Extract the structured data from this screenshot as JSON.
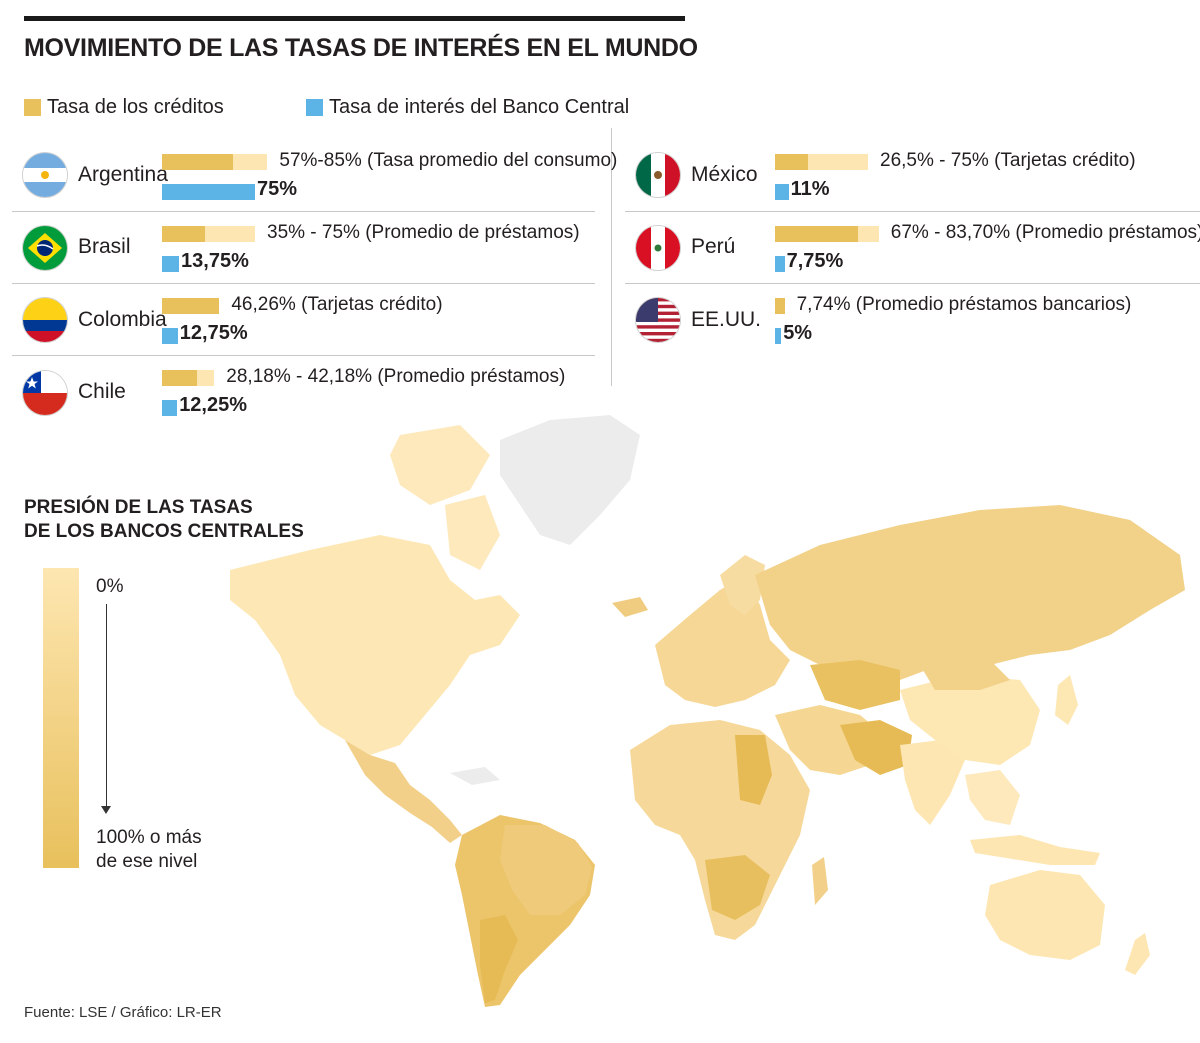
{
  "title": "MOVIMIENTO DE LAS TASAS DE INTERÉS EN EL MUNDO",
  "legend": {
    "credit_label": "Tasa de los créditos",
    "central_label": "Tasa de interés del Banco Central",
    "credit_color": "#e8c05c",
    "credit_track_color": "#fde6b1",
    "central_color": "#5bb4e5"
  },
  "chart_data": {
    "type": "bar",
    "scale_max": 100,
    "countries": [
      {
        "name": "Argentina",
        "flag": "argentina-flag-icon",
        "credit_low": 57,
        "credit_high": 85,
        "credit_text": "57%-85% (Tasa promedio del consumo)",
        "central_rate": 75,
        "central_text": "75%"
      },
      {
        "name": "Brasil",
        "flag": "brazil-flag-icon",
        "credit_low": 35,
        "credit_high": 75,
        "credit_text": "35% - 75% (Promedio de préstamos)",
        "central_rate": 13.75,
        "central_text": "13,75%"
      },
      {
        "name": "Colombia",
        "flag": "colombia-flag-icon",
        "credit_low": 46.26,
        "credit_high": 46.26,
        "credit_text": "46,26% (Tarjetas crédito)",
        "central_rate": 12.75,
        "central_text": "12,75%"
      },
      {
        "name": "Chile",
        "flag": "chile-flag-icon",
        "credit_low": 28.18,
        "credit_high": 42.18,
        "credit_text": "28,18% - 42,18%  (Promedio préstamos)",
        "central_rate": 12.25,
        "central_text": "12,25%"
      },
      {
        "name": "México",
        "flag": "mexico-flag-icon",
        "credit_low": 26.5,
        "credit_high": 75,
        "credit_text": "26,5% - 75% (Tarjetas crédito)",
        "central_rate": 11,
        "central_text": "11%"
      },
      {
        "name": "Perú",
        "flag": "peru-flag-icon",
        "credit_low": 67,
        "credit_high": 83.7,
        "credit_text": "67% - 83,70% (Promedio préstamos)",
        "central_rate": 7.75,
        "central_text": "7,75%"
      },
      {
        "name": "EE.UU.",
        "flag": "usa-flag-icon",
        "credit_low": 7.74,
        "credit_high": 7.74,
        "credit_text": "7,74% (Promedio préstamos bancarios)",
        "central_rate": 5,
        "central_text": "5%"
      }
    ]
  },
  "map": {
    "subtitle_line1": "PRESIÓN DE LAS TASAS",
    "subtitle_line2": "DE LOS BANCOS CENTRALES",
    "scale_top": "0%",
    "scale_bottom_line1": "100% o más",
    "scale_bottom_line2": "de ese nivel",
    "color_low": "#fde6b1",
    "color_high": "#e8c05c",
    "no_data_color": "#ececec"
  },
  "source": "Fuente: LSE / Gráfico: LR-ER"
}
